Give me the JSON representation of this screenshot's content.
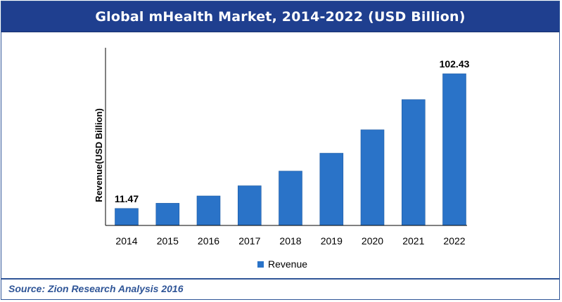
{
  "chart_data": {
    "type": "bar",
    "title": "Global mHealth Market, 2014-2022 (USD Billion)",
    "xlabel": "",
    "ylabel": "Revenue(USD Billion)",
    "categories": [
      "2014",
      "2015",
      "2016",
      "2017",
      "2018",
      "2019",
      "2020",
      "2021",
      "2022"
    ],
    "series": [
      {
        "name": "Revenue",
        "values": [
          11.47,
          15.0,
          19.9,
          26.8,
          36.7,
          48.8,
          64.6,
          85.0,
          102.43
        ],
        "color": "#2a73c8"
      }
    ],
    "data_labels": [
      {
        "category": "2014",
        "text": "11.47"
      },
      {
        "category": "2022",
        "text": "102.43"
      }
    ],
    "ylim": [
      0,
      120
    ],
    "grid": false,
    "legend": "bottom-center"
  },
  "source": "Source: Zion Research Analysis 2016"
}
